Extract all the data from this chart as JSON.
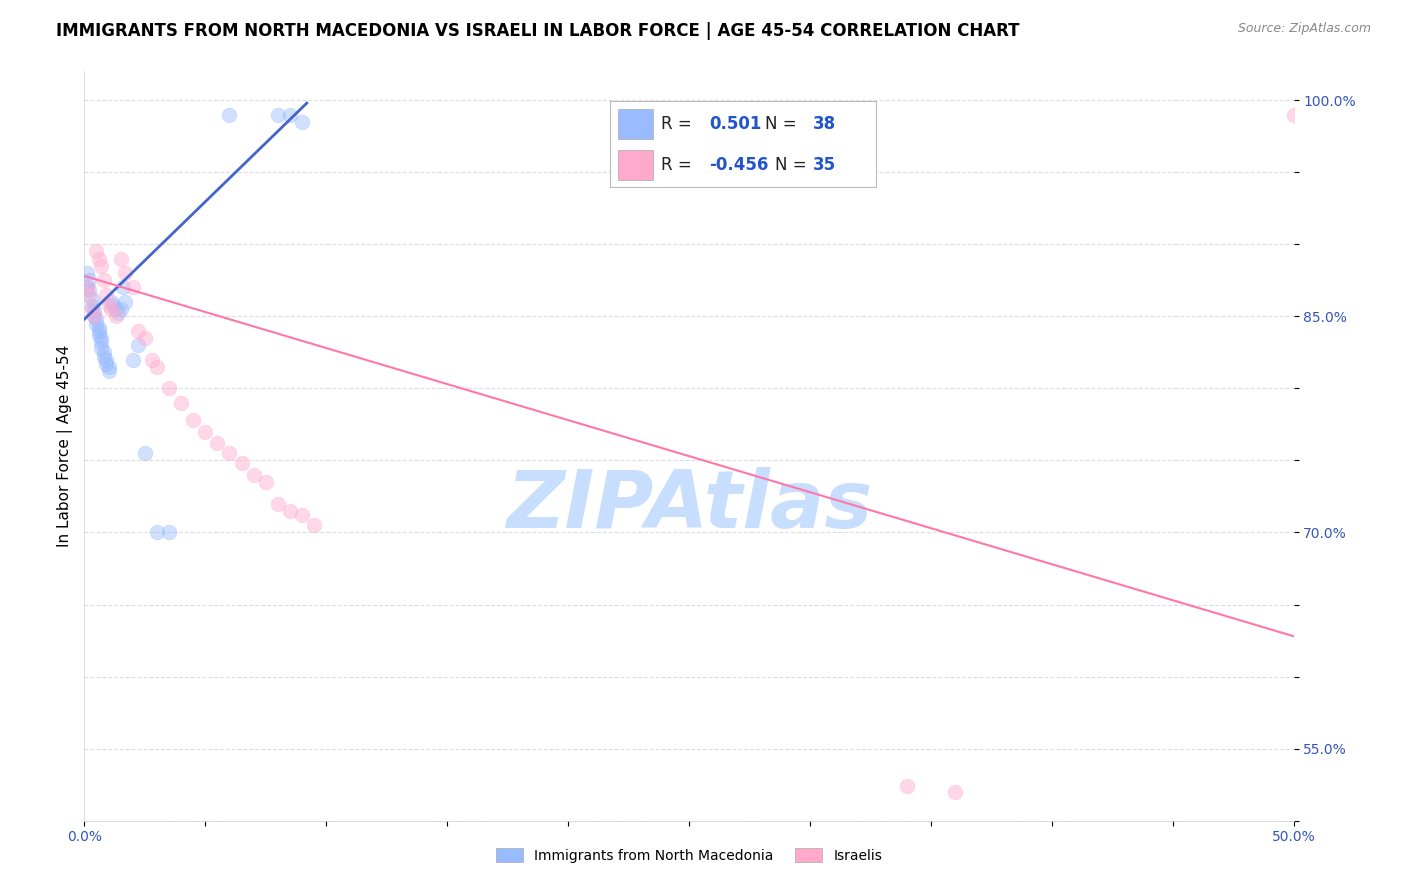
{
  "title": "IMMIGRANTS FROM NORTH MACEDONIA VS ISRAELI IN LABOR FORCE | AGE 45-54 CORRELATION CHART",
  "source": "Source: ZipAtlas.com",
  "ylabel": "In Labor Force | Age 45-54",
  "xlim": [
    0.0,
    0.5
  ],
  "ylim": [
    0.5,
    1.02
  ],
  "xticks": [
    0.0,
    0.05,
    0.1,
    0.15,
    0.2,
    0.25,
    0.3,
    0.35,
    0.4,
    0.45,
    0.5
  ],
  "xtick_labels": [
    "0.0%",
    "",
    "",
    "",
    "",
    "",
    "",
    "",
    "",
    "",
    "50.0%"
  ],
  "yticks": [
    0.5,
    0.55,
    0.6,
    0.65,
    0.7,
    0.75,
    0.8,
    0.85,
    0.9,
    0.95,
    1.0
  ],
  "ytick_labels": [
    "",
    "55.0%",
    "",
    "",
    "70.0%",
    "",
    "",
    "85.0%",
    "",
    "",
    "100.0%"
  ],
  "blue_color": "#99BBFF",
  "pink_color": "#FFAACC",
  "blue_line_color": "#4466CC",
  "pink_line_color": "#FF77AA",
  "watermark": "ZIPAtlas",
  "watermark_color": "#C8DEFF",
  "blue_scatter_x": [
    0.001,
    0.001,
    0.002,
    0.002,
    0.003,
    0.003,
    0.004,
    0.004,
    0.005,
    0.005,
    0.006,
    0.006,
    0.006,
    0.007,
    0.007,
    0.007,
    0.008,
    0.008,
    0.009,
    0.009,
    0.01,
    0.01,
    0.011,
    0.012,
    0.013,
    0.014,
    0.015,
    0.016,
    0.017,
    0.02,
    0.022,
    0.025,
    0.03,
    0.035,
    0.06,
    0.08,
    0.085,
    0.09
  ],
  "blue_scatter_y": [
    0.88,
    0.87,
    0.875,
    0.868,
    0.862,
    0.857,
    0.854,
    0.85,
    0.848,
    0.845,
    0.842,
    0.84,
    0.837,
    0.835,
    0.832,
    0.828,
    0.825,
    0.822,
    0.82,
    0.817,
    0.815,
    0.812,
    0.86,
    0.858,
    0.855,
    0.852,
    0.855,
    0.87,
    0.86,
    0.82,
    0.83,
    0.755,
    0.7,
    0.7,
    0.99,
    0.99,
    0.99,
    0.985
  ],
  "pink_scatter_x": [
    0.001,
    0.002,
    0.003,
    0.004,
    0.005,
    0.006,
    0.007,
    0.008,
    0.009,
    0.01,
    0.011,
    0.013,
    0.015,
    0.017,
    0.02,
    0.022,
    0.025,
    0.028,
    0.03,
    0.035,
    0.04,
    0.045,
    0.05,
    0.055,
    0.06,
    0.065,
    0.07,
    0.075,
    0.08,
    0.085,
    0.09,
    0.095,
    0.34,
    0.36,
    0.5
  ],
  "pink_scatter_y": [
    0.87,
    0.865,
    0.855,
    0.85,
    0.895,
    0.89,
    0.885,
    0.875,
    0.865,
    0.858,
    0.855,
    0.85,
    0.89,
    0.88,
    0.87,
    0.84,
    0.835,
    0.82,
    0.815,
    0.8,
    0.79,
    0.778,
    0.77,
    0.762,
    0.755,
    0.748,
    0.74,
    0.735,
    0.72,
    0.715,
    0.712,
    0.705,
    0.524,
    0.52,
    0.99
  ],
  "blue_trend_x": [
    0.0,
    0.092
  ],
  "blue_trend_y": [
    0.848,
    0.998
  ],
  "pink_trend_x": [
    0.0,
    0.5
  ],
  "pink_trend_y": [
    0.878,
    0.628
  ],
  "background_color": "#FFFFFF",
  "grid_color": "#DDDDDD",
  "title_fontsize": 12,
  "axis_label_fontsize": 11,
  "tick_fontsize": 10,
  "marker_size": 110,
  "marker_alpha": 0.45,
  "legend_r1_val": "0.501",
  "legend_n1_val": "38",
  "legend_r2_val": "-0.456",
  "legend_n2_val": "35"
}
